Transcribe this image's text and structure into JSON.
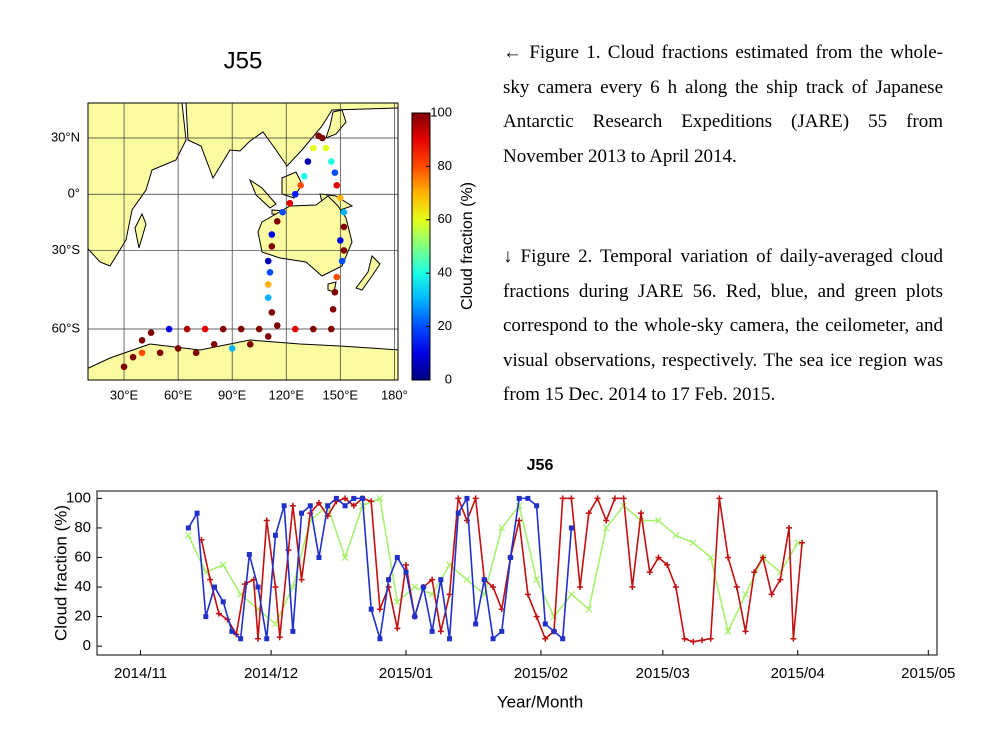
{
  "chart_data": [
    {
      "type": "map-scatter",
      "title": "J55",
      "projection": "mercator",
      "xlim": [
        10,
        182
      ],
      "ylim": [
        -71.5,
        45.4
      ],
      "xticks": [
        {
          "value": 30,
          "label": "30°E"
        },
        {
          "value": 60,
          "label": "60°E"
        },
        {
          "value": 90,
          "label": "90°E"
        },
        {
          "value": 120,
          "label": "120°E"
        },
        {
          "value": 150,
          "label": "150°E"
        },
        {
          "value": 180,
          "label": "180°"
        }
      ],
      "yticks": [
        {
          "value": 30,
          "label": "30°N"
        },
        {
          "value": 0,
          "label": "0°"
        },
        {
          "value": -30,
          "label": "30°S"
        },
        {
          "value": -60,
          "label": "60°S"
        }
      ],
      "grid": true,
      "x": [
        140,
        142,
        145,
        147,
        148,
        150,
        152,
        152,
        150,
        152,
        151,
        148,
        147,
        146,
        145,
        135,
        125,
        115,
        105,
        95,
        85,
        75,
        65,
        55,
        45,
        40,
        35,
        30,
        40,
        50,
        60,
        70,
        80,
        90,
        100,
        110,
        112,
        110,
        110,
        111,
        110,
        112,
        112,
        115,
        118,
        122,
        125,
        128,
        130,
        132,
        135,
        138
      ],
      "y": [
        30,
        25,
        18,
        12,
        5,
        -2,
        -10,
        -18,
        -25,
        -30,
        -35,
        -42,
        -48,
        -54,
        -60,
        -60,
        -60,
        -59,
        -60,
        -60,
        -60,
        -60,
        -60,
        -60,
        -61,
        -63,
        -67,
        -69,
        -66,
        -66,
        -65,
        -66,
        -64,
        -65,
        -64,
        -62,
        -55,
        -50,
        -45,
        -40,
        -35,
        -28,
        -22,
        -15,
        -10,
        -5,
        0,
        5,
        10,
        18,
        25,
        31
      ],
      "values": [
        100,
        60,
        40,
        20,
        90,
        70,
        30,
        100,
        10,
        100,
        20,
        80,
        100,
        100,
        100,
        100,
        90,
        100,
        100,
        100,
        100,
        90,
        95,
        10,
        100,
        100,
        100,
        100,
        80,
        100,
        100,
        100,
        100,
        30,
        100,
        100,
        100,
        30,
        70,
        20,
        5,
        100,
        10,
        100,
        20,
        90,
        15,
        80,
        40,
        5,
        60,
        100
      ],
      "colorbar": {
        "label": "Cloud fraction (%)",
        "lim": [
          0,
          100
        ],
        "ticks": [
          0,
          20,
          40,
          60,
          80,
          100
        ],
        "colormap": "jet"
      }
    },
    {
      "type": "line",
      "title": "J56",
      "x_label": "Year/Month",
      "y_label": "Cloud fraction (%)",
      "xlim": [
        -10,
        183
      ],
      "ylim": [
        -6,
        105
      ],
      "xticks": [
        {
          "value": 0,
          "label": "2014/11"
        },
        {
          "value": 30,
          "label": "2014/12"
        },
        {
          "value": 61,
          "label": "2015/01"
        },
        {
          "value": 92,
          "label": "2015/02"
        },
        {
          "value": 120,
          "label": "2015/03"
        },
        {
          "value": 151,
          "label": "2015/04"
        },
        {
          "value": 181,
          "label": "2015/05"
        }
      ],
      "yticks": [
        0,
        20,
        40,
        60,
        80,
        100
      ],
      "series": [
        {
          "color": "#a8f070",
          "marker": "x",
          "x": [
            11,
            15,
            19,
            23,
            27,
            31,
            35,
            39,
            43,
            47,
            51,
            55,
            59,
            63,
            67,
            71,
            75,
            79,
            83,
            87,
            91,
            95,
            99,
            103,
            107,
            111,
            115,
            119,
            123,
            127,
            131,
            135,
            139,
            143,
            147,
            151
          ],
          "values": [
            75,
            50,
            55,
            35,
            25,
            15,
            40,
            85,
            95,
            60,
            95,
            100,
            30,
            40,
            35,
            55,
            45,
            35,
            80,
            95,
            45,
            20,
            35,
            25,
            80,
            95,
            85,
            85,
            75,
            70,
            60,
            10,
            35,
            60,
            50,
            70
          ]
        },
        {
          "color": "#c01010",
          "marker": "plus",
          "x": [
            14,
            16,
            18,
            20,
            22,
            24,
            26,
            27,
            29,
            31,
            32,
            34,
            35,
            37,
            39,
            41,
            43,
            45,
            47,
            49,
            51,
            53,
            55,
            57,
            59,
            61,
            63,
            65,
            67,
            69,
            71,
            73,
            75,
            77,
            79,
            81,
            83,
            85,
            87,
            89,
            91,
            93,
            95,
            97,
            99,
            101,
            103,
            105,
            107,
            109,
            111,
            113,
            115,
            117,
            119,
            121,
            123,
            125,
            127,
            129,
            131,
            133,
            135,
            137,
            139,
            141,
            143,
            145,
            147,
            149,
            150,
            152
          ],
          "values": [
            72,
            45,
            22,
            18,
            8,
            42,
            45,
            5,
            85,
            40,
            6,
            65,
            95,
            45,
            90,
            97,
            88,
            98,
            100,
            95,
            100,
            98,
            25,
            40,
            12,
            55,
            20,
            40,
            45,
            10,
            35,
            100,
            85,
            100,
            45,
            40,
            25,
            60,
            85,
            35,
            20,
            5,
            10,
            100,
            100,
            40,
            90,
            100,
            85,
            100,
            100,
            40,
            90,
            50,
            60,
            55,
            40,
            5,
            3,
            4,
            5,
            100,
            60,
            40,
            10,
            50,
            60,
            35,
            45,
            80,
            5,
            70
          ]
        },
        {
          "color": "#2030c8",
          "marker": "square",
          "x": [
            11,
            13,
            15,
            17,
            19,
            21,
            23,
            25,
            27,
            29,
            31,
            33,
            35,
            37,
            39,
            41,
            43,
            45,
            47,
            49,
            51,
            53,
            55,
            57,
            59,
            61,
            63,
            65,
            67,
            69,
            71,
            73,
            75,
            77,
            79,
            81,
            83,
            85,
            87,
            89,
            91,
            93,
            95,
            97,
            99
          ],
          "values": [
            80,
            90,
            20,
            40,
            30,
            10,
            5,
            62,
            40,
            5,
            75,
            95,
            10,
            90,
            95,
            60,
            95,
            100,
            95,
            100,
            100,
            25,
            5,
            45,
            60,
            50,
            20,
            40,
            10,
            45,
            5,
            90,
            100,
            15,
            45,
            5,
            10,
            60,
            100,
            100,
            95,
            15,
            10,
            5,
            80
          ]
        }
      ]
    }
  ],
  "captions": [
    "← Figure 1. Cloud fractions estimated from the whole-sky camera every 6 h along the ship track of Japanese Antarctic Research Expeditions (JARE) 55 from November 2013 to April 2014.",
    "↓ Figure 2. Temporal variation of daily-averaged cloud fractions during JARE 56. Red, blue, and green plots correspond to the whole-sky camera, the ceilometer, and visual observations, respectively. The sea ice region was from 15 Dec. 2014 to 17 Feb. 2015."
  ]
}
